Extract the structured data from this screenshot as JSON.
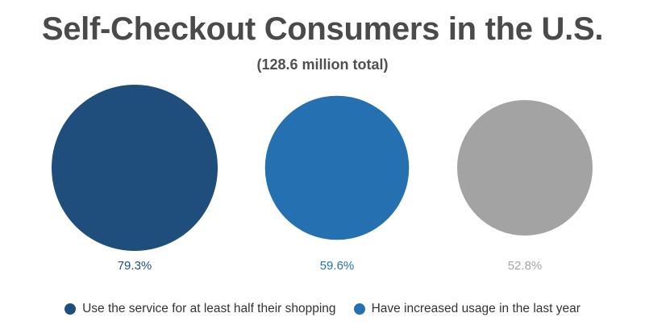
{
  "chart_data": {
    "type": "bubble",
    "title": "Self-Checkout Consumers in the U.S.",
    "subtitle": "(128.6 million total)",
    "unit": "%",
    "points": [
      {
        "value": 79.3,
        "label": "79.3%",
        "color": "#1f4e7d",
        "legend": "Use the service for at least half their shopping"
      },
      {
        "value": 59.6,
        "label": "59.6%",
        "color": "#2470b0",
        "legend": "Have increased usage in the last year"
      },
      {
        "value": 52.8,
        "label": "52.8%",
        "color": "#a3a3a3",
        "legend": ""
      }
    ],
    "legend_position": "bottom"
  }
}
